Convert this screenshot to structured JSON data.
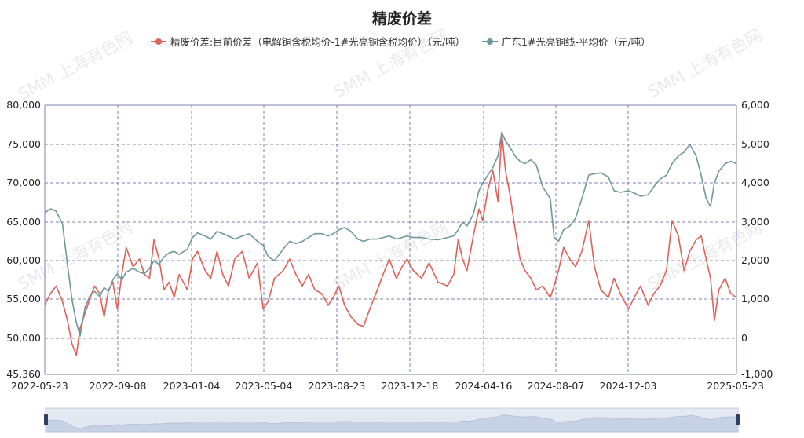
{
  "chart_data": {
    "type": "line",
    "title": "精废价差",
    "legend_position": "top",
    "grid": true,
    "watermark": "SMM 上海有色网",
    "x": [
      "2022-05-23",
      "2022-09-08",
      "2023-01-04",
      "2023-05-04",
      "2023-08-23",
      "2023-12-18",
      "2024-04-16",
      "2024-08-07",
      "2024-12-03",
      "2025-05-23"
    ],
    "xticks": [
      "2022-05-23",
      "2022-09-08",
      "2023-01-04",
      "2023-05-04",
      "2023-08-23",
      "2023-12-18",
      "2024-04-16",
      "2024-08-07",
      "2024-12-03",
      "2025-05-23"
    ],
    "y_left": {
      "range": [
        45360,
        80000
      ],
      "ticks": [
        "80,000",
        "75,000",
        "70,000",
        "65,000",
        "60,000",
        "55,000",
        "50,000",
        "45,360"
      ]
    },
    "y_right": {
      "range": [
        -1000,
        6000
      ],
      "ticks": [
        "6,000",
        "5,000",
        "4,000",
        "3,000",
        "2,000",
        "1,000",
        "0",
        "-1,000"
      ]
    },
    "series": [
      {
        "name": "精废价差:目前价差（电解铜含税均价-1#光亮铜含税均价）（元/吨）",
        "axis": "right",
        "color": "#e0605a",
        "points": [
          [
            "2022-05-23",
            800
          ],
          [
            "2022-06-01",
            1100
          ],
          [
            "2022-06-10",
            1300
          ],
          [
            "2022-06-20",
            900
          ],
          [
            "2022-06-28",
            400
          ],
          [
            "2022-07-05",
            -200
          ],
          [
            "2022-07-12",
            -500
          ],
          [
            "2022-07-18",
            200
          ],
          [
            "2022-07-26",
            600
          ],
          [
            "2022-08-03",
            1000
          ],
          [
            "2022-08-10",
            1300
          ],
          [
            "2022-08-18",
            1100
          ],
          [
            "2022-08-25",
            500
          ],
          [
            "2022-09-01",
            1200
          ],
          [
            "2022-09-08",
            1400
          ],
          [
            "2022-09-15",
            700
          ],
          [
            "2022-09-22",
            1600
          ],
          [
            "2022-09-29",
            2300
          ],
          [
            "2022-10-10",
            1800
          ],
          [
            "2022-10-20",
            2000
          ],
          [
            "2022-10-28",
            1600
          ],
          [
            "2022-11-05",
            1500
          ],
          [
            "2022-11-12",
            2500
          ],
          [
            "2022-11-20",
            2000
          ],
          [
            "2022-11-28",
            1200
          ],
          [
            "2022-12-06",
            1400
          ],
          [
            "2022-12-14",
            1000
          ],
          [
            "2022-12-22",
            1600
          ],
          [
            "2023-01-04",
            1200
          ],
          [
            "2023-01-12",
            2000
          ],
          [
            "2023-01-20",
            2200
          ],
          [
            "2023-02-01",
            1700
          ],
          [
            "2023-02-10",
            1500
          ],
          [
            "2023-02-20",
            2200
          ],
          [
            "2023-03-01",
            1600
          ],
          [
            "2023-03-10",
            1300
          ],
          [
            "2023-03-20",
            2000
          ],
          [
            "2023-04-01",
            2200
          ],
          [
            "2023-04-12",
            1500
          ],
          [
            "2023-04-25",
            1900
          ],
          [
            "2023-05-04",
            700
          ],
          [
            "2023-05-12",
            900
          ],
          [
            "2023-05-22",
            1500
          ],
          [
            "2023-06-05",
            1700
          ],
          [
            "2023-06-15",
            2000
          ],
          [
            "2023-06-25",
            1600
          ],
          [
            "2023-07-05",
            1300
          ],
          [
            "2023-07-15",
            1600
          ],
          [
            "2023-07-25",
            1200
          ],
          [
            "2023-08-05",
            1100
          ],
          [
            "2023-08-15",
            800
          ],
          [
            "2023-08-23",
            1000
          ],
          [
            "2023-09-01",
            1300
          ],
          [
            "2023-09-10",
            800
          ],
          [
            "2023-09-20",
            500
          ],
          [
            "2023-10-01",
            300
          ],
          [
            "2023-10-10",
            250
          ],
          [
            "2023-10-20",
            700
          ],
          [
            "2023-11-01",
            1200
          ],
          [
            "2023-11-10",
            1600
          ],
          [
            "2023-11-20",
            2000
          ],
          [
            "2023-12-01",
            1500
          ],
          [
            "2023-12-10",
            1800
          ],
          [
            "2023-12-18",
            2000
          ],
          [
            "2023-12-28",
            1700
          ],
          [
            "2024-01-10",
            1500
          ],
          [
            "2024-01-22",
            1900
          ],
          [
            "2024-02-05",
            1400
          ],
          [
            "2024-02-20",
            1300
          ],
          [
            "2024-03-01",
            1600
          ],
          [
            "2024-03-08",
            2500
          ],
          [
            "2024-03-15",
            2000
          ],
          [
            "2024-03-22",
            1700
          ],
          [
            "2024-04-01",
            2600
          ],
          [
            "2024-04-10",
            3300
          ],
          [
            "2024-04-16",
            3000
          ],
          [
            "2024-04-24",
            3800
          ],
          [
            "2024-05-02",
            4300
          ],
          [
            "2024-05-10",
            3500
          ],
          [
            "2024-05-16",
            5300
          ],
          [
            "2024-05-22",
            4300
          ],
          [
            "2024-05-30",
            3600
          ],
          [
            "2024-06-06",
            2800
          ],
          [
            "2024-06-14",
            2000
          ],
          [
            "2024-06-22",
            1700
          ],
          [
            "2024-07-01",
            1500
          ],
          [
            "2024-07-10",
            1200
          ],
          [
            "2024-07-20",
            1300
          ],
          [
            "2024-08-01",
            1000
          ],
          [
            "2024-08-07",
            1300
          ],
          [
            "2024-08-14",
            1700
          ],
          [
            "2024-08-22",
            2300
          ],
          [
            "2024-09-01",
            2000
          ],
          [
            "2024-09-10",
            1800
          ],
          [
            "2024-09-20",
            2200
          ],
          [
            "2024-10-01",
            3000
          ],
          [
            "2024-10-10",
            1800
          ],
          [
            "2024-10-20",
            1200
          ],
          [
            "2024-11-01",
            1000
          ],
          [
            "2024-11-10",
            1500
          ],
          [
            "2024-11-20",
            1100
          ],
          [
            "2024-12-03",
            700
          ],
          [
            "2024-12-12",
            1000
          ],
          [
            "2024-12-22",
            1300
          ],
          [
            "2025-01-03",
            800
          ],
          [
            "2025-01-12",
            1100
          ],
          [
            "2025-01-22",
            1300
          ],
          [
            "2025-02-01",
            1700
          ],
          [
            "2025-02-10",
            3000
          ],
          [
            "2025-02-20",
            2600
          ],
          [
            "2025-03-01",
            1700
          ],
          [
            "2025-03-10",
            2200
          ],
          [
            "2025-03-20",
            2500
          ],
          [
            "2025-03-28",
            2600
          ],
          [
            "2025-04-05",
            2000
          ],
          [
            "2025-04-12",
            1500
          ],
          [
            "2025-04-18",
            400
          ],
          [
            "2025-04-25",
            1200
          ],
          [
            "2025-05-05",
            1500
          ],
          [
            "2025-05-14",
            1100
          ],
          [
            "2025-05-23",
            1000
          ]
        ]
      },
      {
        "name": "广东1#光亮铜线-平均价（元/吨）",
        "axis": "left",
        "color": "#6e989c",
        "points": [
          [
            "2022-05-23",
            66200
          ],
          [
            "2022-06-01",
            66700
          ],
          [
            "2022-06-10",
            66400
          ],
          [
            "2022-06-20",
            64800
          ],
          [
            "2022-06-28",
            59500
          ],
          [
            "2022-07-05",
            55000
          ],
          [
            "2022-07-12",
            52000
          ],
          [
            "2022-07-18",
            50300
          ],
          [
            "2022-07-26",
            54000
          ],
          [
            "2022-08-03",
            55500
          ],
          [
            "2022-08-10",
            56000
          ],
          [
            "2022-08-18",
            55300
          ],
          [
            "2022-08-25",
            56500
          ],
          [
            "2022-09-01",
            56000
          ],
          [
            "2022-09-08",
            57500
          ],
          [
            "2022-09-15",
            58300
          ],
          [
            "2022-09-22",
            57500
          ],
          [
            "2022-09-29",
            58500
          ],
          [
            "2022-10-10",
            59000
          ],
          [
            "2022-10-20",
            58500
          ],
          [
            "2022-10-28",
            58300
          ],
          [
            "2022-11-05",
            59000
          ],
          [
            "2022-11-12",
            60000
          ],
          [
            "2022-11-20",
            59500
          ],
          [
            "2022-11-28",
            60500
          ],
          [
            "2022-12-06",
            61000
          ],
          [
            "2022-12-14",
            61200
          ],
          [
            "2022-12-22",
            60800
          ],
          [
            "2023-01-04",
            61500
          ],
          [
            "2023-01-12",
            63000
          ],
          [
            "2023-01-20",
            63600
          ],
          [
            "2023-02-01",
            63200
          ],
          [
            "2023-02-10",
            62800
          ],
          [
            "2023-02-20",
            63800
          ],
          [
            "2023-03-01",
            63500
          ],
          [
            "2023-03-10",
            63200
          ],
          [
            "2023-03-20",
            62800
          ],
          [
            "2023-04-01",
            63200
          ],
          [
            "2023-04-12",
            63500
          ],
          [
            "2023-04-25",
            62500
          ],
          [
            "2023-05-04",
            62000
          ],
          [
            "2023-05-12",
            60500
          ],
          [
            "2023-05-22",
            60000
          ],
          [
            "2023-06-05",
            61500
          ],
          [
            "2023-06-15",
            62500
          ],
          [
            "2023-06-25",
            62200
          ],
          [
            "2023-07-05",
            62500
          ],
          [
            "2023-07-15",
            63000
          ],
          [
            "2023-07-25",
            63500
          ],
          [
            "2023-08-05",
            63500
          ],
          [
            "2023-08-15",
            63200
          ],
          [
            "2023-08-23",
            63500
          ],
          [
            "2023-09-01",
            64000
          ],
          [
            "2023-09-10",
            64300
          ],
          [
            "2023-09-20",
            63800
          ],
          [
            "2023-10-01",
            62800
          ],
          [
            "2023-10-10",
            62500
          ],
          [
            "2023-10-20",
            62800
          ],
          [
            "2023-11-01",
            62800
          ],
          [
            "2023-11-10",
            63000
          ],
          [
            "2023-11-20",
            63200
          ],
          [
            "2023-12-01",
            62800
          ],
          [
            "2023-12-10",
            63000
          ],
          [
            "2023-12-18",
            63200
          ],
          [
            "2023-12-28",
            63000
          ],
          [
            "2024-01-10",
            63000
          ],
          [
            "2024-01-22",
            62800
          ],
          [
            "2024-02-05",
            62700
          ],
          [
            "2024-02-20",
            63000
          ],
          [
            "2024-03-01",
            63200
          ],
          [
            "2024-03-08",
            64000
          ],
          [
            "2024-03-15",
            65000
          ],
          [
            "2024-03-22",
            64500
          ],
          [
            "2024-04-01",
            66000
          ],
          [
            "2024-04-10",
            69000
          ],
          [
            "2024-04-16",
            70000
          ],
          [
            "2024-04-24",
            71000
          ],
          [
            "2024-05-02",
            72000
          ],
          [
            "2024-05-10",
            73500
          ],
          [
            "2024-05-16",
            76500
          ],
          [
            "2024-05-22",
            75500
          ],
          [
            "2024-05-30",
            74500
          ],
          [
            "2024-06-06",
            73500
          ],
          [
            "2024-06-14",
            72800
          ],
          [
            "2024-06-22",
            72500
          ],
          [
            "2024-07-01",
            73000
          ],
          [
            "2024-07-10",
            72300
          ],
          [
            "2024-07-20",
            69500
          ],
          [
            "2024-08-01",
            68000
          ],
          [
            "2024-08-07",
            63000
          ],
          [
            "2024-08-14",
            62500
          ],
          [
            "2024-08-22",
            64000
          ],
          [
            "2024-09-01",
            64500
          ],
          [
            "2024-09-10",
            65500
          ],
          [
            "2024-09-20",
            68000
          ],
          [
            "2024-10-01",
            71000
          ],
          [
            "2024-10-10",
            71200
          ],
          [
            "2024-10-20",
            71300
          ],
          [
            "2024-11-01",
            70800
          ],
          [
            "2024-11-10",
            69000
          ],
          [
            "2024-11-20",
            68800
          ],
          [
            "2024-12-03",
            69000
          ],
          [
            "2024-12-12",
            68700
          ],
          [
            "2024-12-22",
            68300
          ],
          [
            "2025-01-03",
            68500
          ],
          [
            "2025-01-12",
            69500
          ],
          [
            "2025-01-22",
            70500
          ],
          [
            "2025-02-01",
            71000
          ],
          [
            "2025-02-10",
            72500
          ],
          [
            "2025-02-20",
            73500
          ],
          [
            "2025-03-01",
            74000
          ],
          [
            "2025-03-10",
            75000
          ],
          [
            "2025-03-20",
            73500
          ],
          [
            "2025-03-28",
            71000
          ],
          [
            "2025-04-05",
            68000
          ],
          [
            "2025-04-12",
            67000
          ],
          [
            "2025-04-18",
            70000
          ],
          [
            "2025-04-25",
            71500
          ],
          [
            "2025-05-05",
            72500
          ],
          [
            "2025-05-14",
            72800
          ],
          [
            "2025-05-23",
            72500
          ]
        ]
      }
    ]
  }
}
